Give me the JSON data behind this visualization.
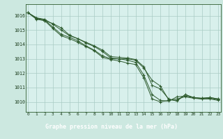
{
  "bg_color": "#cce8e0",
  "plot_bg": "#d8f0ec",
  "grid_color": "#aaccc4",
  "line_color": "#2d5a2d",
  "title": "Graphe pression niveau de la mer (hPa)",
  "title_bg": "#2d5a2d",
  "title_fg": "#ffffff",
  "hours": [
    0,
    1,
    2,
    3,
    4,
    5,
    6,
    7,
    8,
    9,
    10,
    11,
    12,
    13,
    14,
    15,
    16,
    17,
    18,
    19,
    20,
    21,
    22,
    23
  ],
  "ylim": [
    1009.3,
    1016.8
  ],
  "yticks": [
    1010,
    1011,
    1012,
    1013,
    1014,
    1015,
    1016
  ],
  "series": [
    [
      1016.2,
      1015.75,
      1015.65,
      1015.1,
      1014.6,
      1014.4,
      1014.15,
      1013.85,
      1013.55,
      1013.1,
      1012.95,
      1012.85,
      1012.7,
      1012.6,
      1011.65,
      1010.2,
      1010.0,
      1010.1,
      1010.2,
      1010.35,
      1010.25,
      1010.2,
      1010.2,
      1010.1
    ],
    [
      1016.2,
      1015.8,
      1015.7,
      1015.2,
      1014.7,
      1014.5,
      1014.25,
      1013.9,
      1013.6,
      1013.2,
      1013.0,
      1013.0,
      1012.9,
      1012.75,
      1011.85,
      1010.5,
      1010.1,
      1010.05,
      1010.35,
      1010.4,
      1010.3,
      1010.2,
      1010.25,
      1010.15
    ],
    [
      1016.2,
      1015.85,
      1015.75,
      1015.4,
      1015.0,
      1014.6,
      1014.4,
      1014.1,
      1013.85,
      1013.5,
      1013.05,
      1013.0,
      1013.0,
      1012.9,
      1012.35,
      1011.5,
      1011.1,
      1010.15,
      1010.1,
      1010.5,
      1010.3,
      1010.25,
      1010.3,
      1010.2
    ],
    [
      1016.2,
      1015.85,
      1015.65,
      1015.45,
      1015.15,
      1014.65,
      1014.4,
      1014.15,
      1013.9,
      1013.6,
      1013.15,
      1013.1,
      1013.05,
      1012.95,
      1012.45,
      1011.15,
      1010.9,
      1010.2,
      1010.05,
      1010.5,
      1010.3,
      1010.25,
      1010.3,
      1010.2
    ]
  ]
}
